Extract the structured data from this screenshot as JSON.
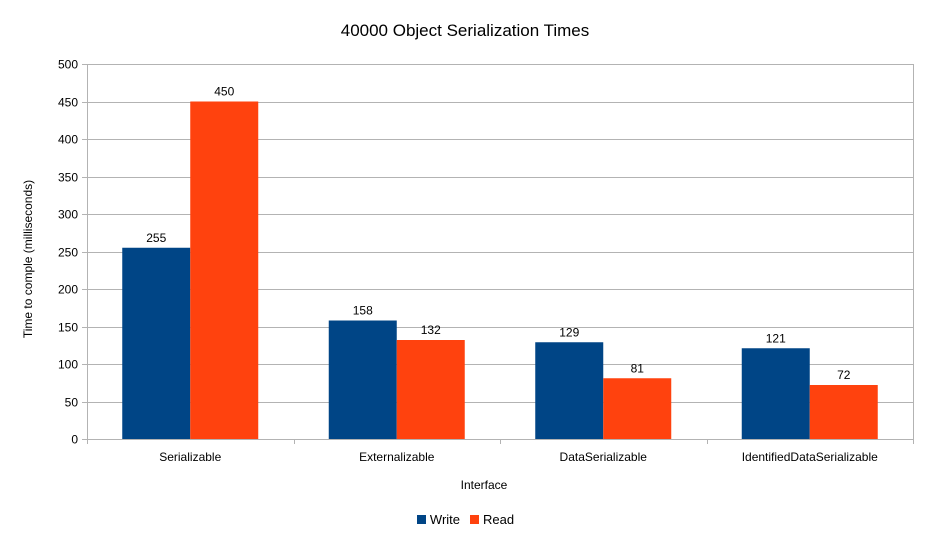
{
  "chart_data": {
    "type": "bar",
    "title": "40000 Object Serialization Times",
    "xlabel": "Interface",
    "ylabel": "Time to comple (milliseconds)",
    "categories": [
      "Serializable",
      "Externalizable",
      "DataSerializable",
      "IdentifiedDataSerializable"
    ],
    "series": [
      {
        "name": "Write",
        "values": [
          255,
          158,
          129,
          121
        ],
        "color": "#004586"
      },
      {
        "name": "Read",
        "values": [
          450,
          132,
          81,
          72
        ],
        "color": "#ff420e"
      }
    ],
    "ylim": [
      0,
      500
    ],
    "yticks": [
      0,
      50,
      100,
      150,
      200,
      250,
      300,
      350,
      400,
      450,
      500
    ],
    "grid": true,
    "legend_position": "bottom",
    "data_labels": true
  }
}
